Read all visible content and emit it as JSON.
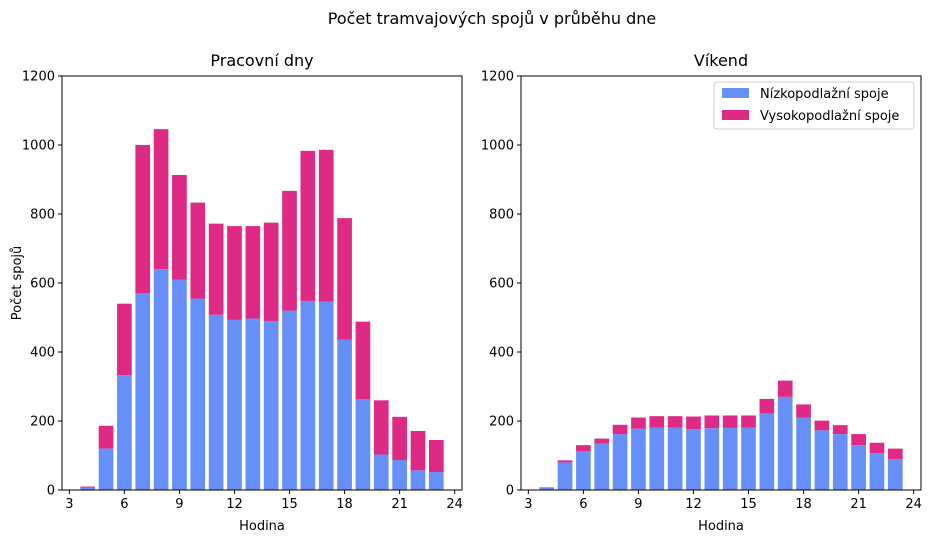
{
  "figure": {
    "title": "Počet tramvajových spojů v průběhu dne"
  },
  "colors": {
    "low_floor": "#6690f8",
    "high_floor": "#df2a85"
  },
  "legend": {
    "low_floor": "Nízkopodlažní spoje",
    "high_floor": "Vysokopodlažní spoje",
    "placement": "top-right"
  },
  "chart_data": [
    {
      "type": "bar",
      "stacked": true,
      "title": "Pracovní dny",
      "xlabel": "Hodina",
      "ylabel": "Počet spojů",
      "xlim": [
        2.6,
        24.4
      ],
      "ylim": [
        0,
        1200
      ],
      "xticks": [
        3,
        6,
        9,
        12,
        15,
        18,
        21,
        24
      ],
      "yticks": [
        0,
        200,
        400,
        600,
        800,
        1000,
        1200
      ],
      "grid": false,
      "categories": [
        4,
        5,
        6,
        7,
        8,
        9,
        10,
        11,
        12,
        13,
        14,
        15,
        16,
        17,
        18,
        19,
        20,
        21,
        22,
        23
      ],
      "series": [
        {
          "name": "Nízkopodlažní spoje",
          "values": [
            7,
            120,
            333,
            570,
            640,
            610,
            555,
            508,
            493,
            497,
            490,
            520,
            548,
            546,
            436,
            263,
            103,
            87,
            57,
            52
          ]
        },
        {
          "name": "Vysokopodlažní spoje",
          "values": [
            3,
            66,
            207,
            430,
            406,
            303,
            278,
            264,
            272,
            268,
            285,
            347,
            435,
            440,
            352,
            225,
            157,
            125,
            114,
            93
          ]
        }
      ]
    },
    {
      "type": "bar",
      "stacked": true,
      "title": "Víkend",
      "xlabel": "Hodina",
      "ylabel": "",
      "xlim": [
        2.6,
        24.4
      ],
      "ylim": [
        0,
        1200
      ],
      "xticks": [
        3,
        6,
        9,
        12,
        15,
        18,
        21,
        24
      ],
      "yticks": [
        0,
        200,
        400,
        600,
        800,
        1000,
        1200
      ],
      "grid": false,
      "legend": "top-right",
      "categories": [
        4,
        5,
        6,
        7,
        8,
        9,
        10,
        11,
        12,
        13,
        14,
        15,
        16,
        17,
        18,
        19,
        20,
        21,
        22,
        23
      ],
      "series": [
        {
          "name": "Nízkopodlažní spoje",
          "values": [
            8,
            80,
            112,
            135,
            162,
            178,
            181,
            181,
            176,
            179,
            180,
            181,
            222,
            270,
            210,
            173,
            162,
            130,
            107,
            90
          ]
        },
        {
          "name": "Vysokopodlažní spoje",
          "values": [
            0,
            6,
            18,
            14,
            27,
            32,
            33,
            33,
            37,
            37,
            36,
            35,
            42,
            47,
            38,
            28,
            26,
            32,
            30,
            30
          ]
        }
      ]
    }
  ]
}
